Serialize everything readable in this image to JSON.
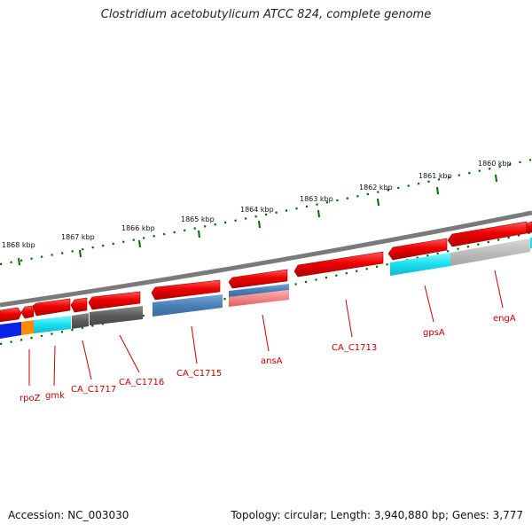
{
  "title": "Clostridium acetobutylicum ATCC 824, complete genome",
  "footer": {
    "accession": "Accession: NC_003030",
    "summary": "Topology: circular; Length: 3,940,880 bp; Genes: 3,777"
  },
  "scale_ticks": [
    {
      "label": "1868 kbp"
    },
    {
      "label": "1867 kbp"
    },
    {
      "label": "1866 kbp"
    },
    {
      "label": "1865 kbp"
    },
    {
      "label": "1864 kbp"
    },
    {
      "label": "1863 kbp"
    },
    {
      "label": "1862 kbp"
    },
    {
      "label": "1861 kbp"
    },
    {
      "label": "1860 kbp"
    }
  ],
  "gene_labels": [
    {
      "label": "rpoZ"
    },
    {
      "label": "gmk"
    },
    {
      "label": "CA_C1717"
    },
    {
      "label": "CA_C1716"
    },
    {
      "label": "CA_C1715"
    },
    {
      "label": "ansA"
    },
    {
      "label": "CA_C1713"
    },
    {
      "label": "gpsA"
    },
    {
      "label": "engA"
    }
  ],
  "colors": {
    "forward_cds": "#ee0000",
    "backbone": "#888888",
    "tick": "#006600",
    "label": "#cc0000"
  }
}
